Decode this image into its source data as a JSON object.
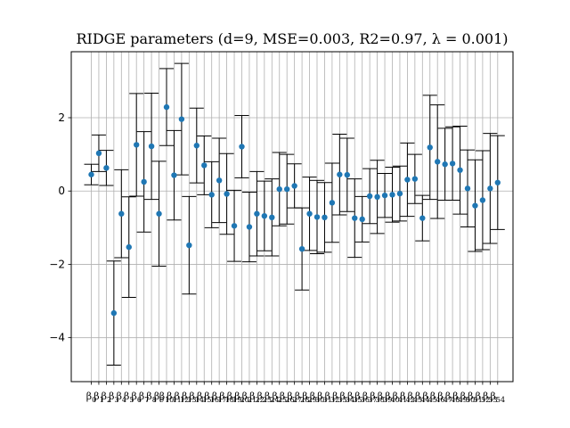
{
  "chart_data": {
    "type": "scatter",
    "title": "RIDGE parameters (d=9, MSE=0.003, R2=0.97, λ = 0.001)",
    "xlabel": "",
    "ylabel": "",
    "ylim": [
      -5.2,
      3.8
    ],
    "yticks": [
      -4,
      -2,
      0,
      2
    ],
    "grid": true,
    "x_tick_symbol": "β",
    "x_tick_indices": [
      "0",
      "1",
      "2",
      "3",
      "4",
      "5",
      "6",
      "7",
      "8",
      "9",
      "10",
      "11",
      "12",
      "13",
      "14",
      "15",
      "16",
      "17",
      "18",
      "19",
      "20",
      "21",
      "22",
      "23",
      "24",
      "25",
      "26",
      "27",
      "28",
      "29",
      "30",
      "31",
      "32",
      "33",
      "34",
      "35",
      "36",
      "37",
      "38",
      "39",
      "40",
      "41",
      "42",
      "43",
      "44",
      "45",
      "46",
      "47",
      "48",
      "49",
      "50",
      "51",
      "52",
      "53",
      "54"
    ],
    "series": [
      {
        "values": [
          0.45,
          1.03,
          0.63,
          -3.33,
          -0.62,
          -1.53,
          1.26,
          0.25,
          1.22,
          -0.62,
          2.29,
          0.43,
          1.96,
          -1.48,
          1.24,
          0.7,
          -0.1,
          0.29,
          -0.08,
          -0.95,
          1.21,
          -0.98,
          -0.62,
          -0.68,
          -0.72,
          0.05,
          0.05,
          0.14,
          -1.58,
          -0.62,
          -0.71,
          -0.72,
          -0.32,
          0.45,
          0.44,
          -0.74,
          -0.77,
          -0.14,
          -0.16,
          -0.12,
          -0.1,
          -0.07,
          0.31,
          0.33,
          -0.74,
          1.19,
          0.8,
          0.73,
          0.75,
          0.57,
          0.07,
          -0.4,
          -0.25,
          0.07,
          0.23
        ],
        "errors": [
          0.28,
          0.5,
          0.48,
          1.42,
          1.2,
          1.37,
          1.4,
          1.37,
          1.45,
          1.43,
          1.05,
          1.22,
          1.52,
          1.33,
          1.02,
          0.8,
          0.9,
          1.15,
          1.1,
          0.97,
          0.85,
          0.95,
          1.15,
          0.95,
          1.05,
          1.0,
          0.95,
          0.6,
          1.12,
          1.0,
          1.0,
          0.95,
          1.08,
          1.1,
          1.0,
          1.07,
          0.62,
          0.75,
          1.0,
          0.6,
          0.75,
          0.75,
          1.0,
          0.67,
          0.62,
          1.42,
          1.55,
          0.98,
          1.0,
          1.2,
          1.05,
          1.25,
          1.35,
          1.5,
          1.28
        ]
      }
    ]
  }
}
